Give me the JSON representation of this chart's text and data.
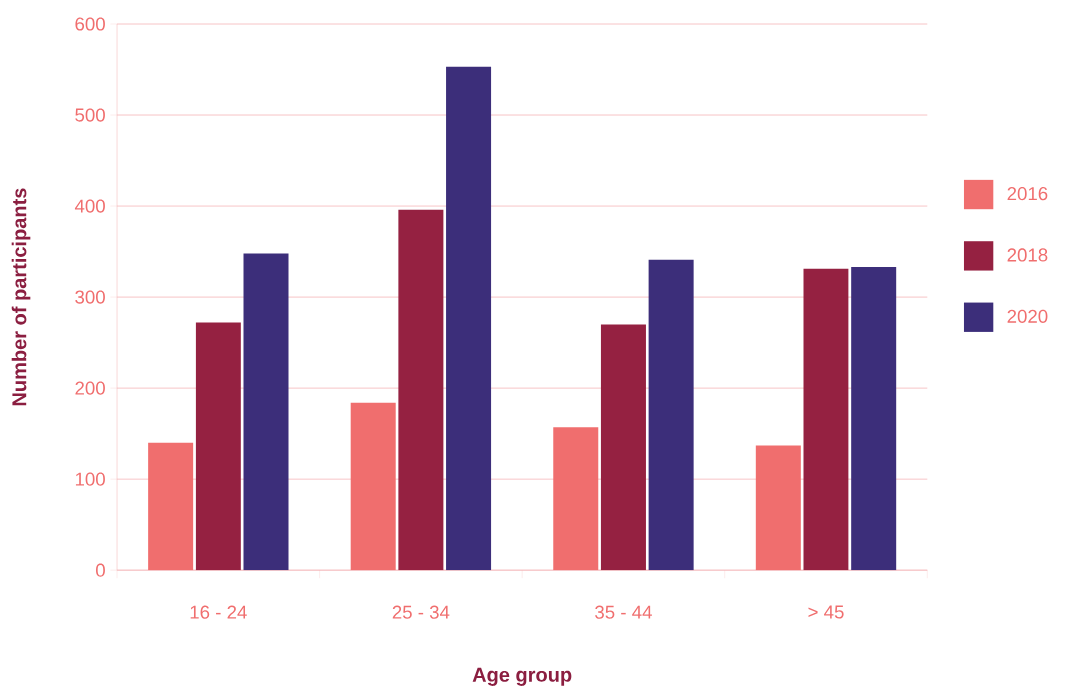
{
  "chart_data": {
    "type": "bar",
    "xlabel": "Age group",
    "ylabel": "Number of participants",
    "categories": [
      "16 - 24",
      "25 - 34",
      "35 - 44",
      "> 45"
    ],
    "series": [
      {
        "name": "2016",
        "color": "#f06e6e",
        "values": [
          140,
          184,
          157,
          137
        ]
      },
      {
        "name": "2018",
        "color": "#952141",
        "values": [
          272,
          396,
          270,
          331
        ]
      },
      {
        "name": "2020",
        "color": "#3c2e7a",
        "values": [
          348,
          553,
          341,
          333
        ]
      }
    ],
    "ylim": [
      0,
      600
    ],
    "yticks": [
      0,
      100,
      200,
      300,
      400,
      500,
      600
    ],
    "grid": "y",
    "legend": "right"
  }
}
